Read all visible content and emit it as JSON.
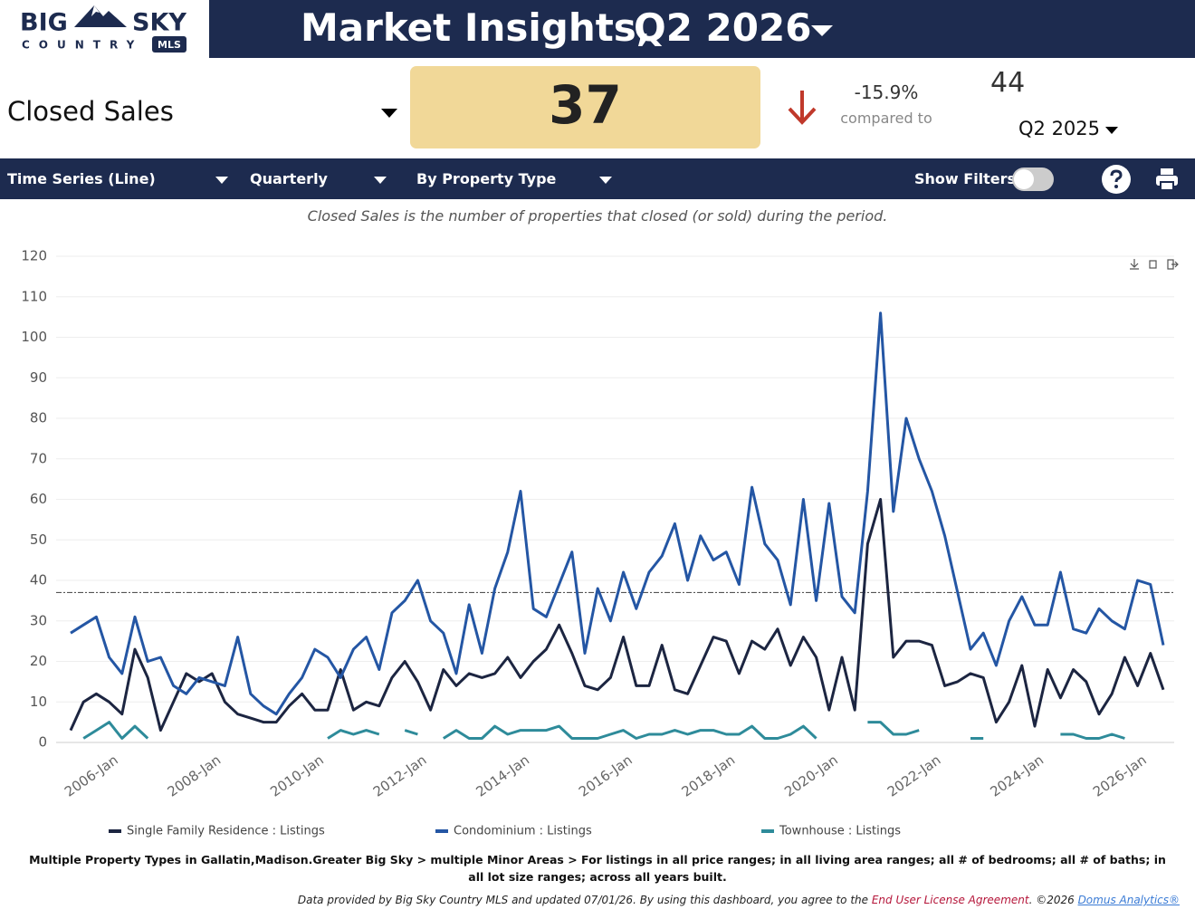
{
  "logo": {
    "big": "BIG",
    "sky": "SKY",
    "country": "COUNTRY",
    "badge": "MLS"
  },
  "header": {
    "title": "Market Insights,",
    "period": "Q2 2026"
  },
  "kpi": {
    "metric": "Closed Sales",
    "value": 37,
    "change": "-15.9%",
    "compared_to": "compared to",
    "prior_value": 44,
    "prior_period": "Q2 2025"
  },
  "toolbar": {
    "chart_type": "Time Series (Line)",
    "interval": "Quarterly",
    "grouping": "By Property Type",
    "show_filters": "Show Filters:"
  },
  "description": "Closed Sales is the number of properties that closed (or sold) during the period.",
  "chart_data": {
    "type": "line",
    "categories": [
      null,
      null,
      null,
      null,
      "2006-Jan",
      null,
      null,
      null,
      null,
      null,
      null,
      null,
      "2008-Jan",
      null,
      null,
      null,
      null,
      null,
      null,
      null,
      "2010-Jan",
      null,
      null,
      null,
      null,
      null,
      null,
      null,
      "2012-Jan",
      null,
      null,
      null,
      null,
      null,
      null,
      null,
      "2014-Jan",
      null,
      null,
      null,
      null,
      null,
      null,
      null,
      "2016-Jan",
      null,
      null,
      null,
      null,
      null,
      null,
      null,
      "2018-Jan",
      null,
      null,
      null,
      null,
      null,
      null,
      null,
      "2020-Jan",
      null,
      null,
      null,
      null,
      null,
      null,
      null,
      "2022-Jan",
      null,
      null,
      null,
      null,
      null,
      null,
      null,
      "2024-Jan",
      null,
      null,
      null,
      null,
      null,
      null,
      null,
      "2026-Jan",
      null
    ],
    "series": [
      {
        "name": "Single Family Residence : Listings",
        "color": "#1c2541",
        "values": [
          3,
          10,
          12,
          10,
          7,
          23,
          16,
          3,
          10,
          17,
          15,
          17,
          10,
          7,
          6,
          5,
          5,
          9,
          12,
          8,
          8,
          18,
          8,
          10,
          9,
          16,
          20,
          15,
          8,
          18,
          14,
          17,
          16,
          17,
          21,
          16,
          20,
          23,
          29,
          22,
          14,
          13,
          16,
          26,
          14,
          14,
          24,
          13,
          12,
          19,
          26,
          25,
          17,
          25,
          23,
          28,
          19,
          26,
          21,
          8,
          21,
          8,
          49,
          60,
          21,
          25,
          25,
          24,
          14,
          15,
          17,
          16,
          5,
          10,
          19,
          4,
          18,
          11,
          18,
          15,
          7,
          12,
          21,
          14,
          22,
          13
        ]
      },
      {
        "name": "Condominium : Listings",
        "color": "#2456a4",
        "values": [
          27,
          29,
          31,
          21,
          17,
          31,
          20,
          21,
          14,
          12,
          16,
          15,
          14,
          26,
          12,
          9,
          7,
          12,
          16,
          23,
          21,
          16,
          23,
          26,
          18,
          32,
          35,
          40,
          30,
          27,
          17,
          34,
          22,
          38,
          47,
          62,
          33,
          31,
          39,
          47,
          22,
          38,
          30,
          42,
          33,
          42,
          46,
          54,
          40,
          51,
          45,
          47,
          39,
          63,
          49,
          45,
          34,
          60,
          35,
          59,
          36,
          32,
          62,
          106,
          57,
          80,
          70,
          62,
          51,
          37,
          23,
          27,
          19,
          30,
          36,
          29,
          29,
          42,
          28,
          27,
          33,
          30,
          28,
          40,
          39,
          24
        ]
      },
      {
        "name": "Townhouse : Listings",
        "color": "#2e8b9a",
        "values": [
          null,
          1,
          3,
          5,
          1,
          4,
          1,
          null,
          null,
          null,
          null,
          null,
          null,
          null,
          null,
          null,
          null,
          null,
          null,
          null,
          1,
          3,
          2,
          3,
          2,
          null,
          3,
          2,
          null,
          1,
          3,
          1,
          1,
          4,
          2,
          3,
          3,
          3,
          4,
          1,
          1,
          1,
          2,
          3,
          1,
          2,
          2,
          3,
          2,
          3,
          3,
          2,
          2,
          4,
          1,
          1,
          2,
          4,
          1,
          null,
          null,
          null,
          5,
          5,
          2,
          2,
          3,
          null,
          null,
          null,
          1,
          1,
          null,
          null,
          null,
          null,
          null,
          2,
          2,
          1,
          1,
          2,
          1,
          null,
          null,
          null
        ]
      }
    ],
    "ylim": [
      0,
      120
    ],
    "yticks": [
      0,
      10,
      20,
      30,
      40,
      50,
      60,
      70,
      80,
      90,
      100,
      110,
      120
    ],
    "grid": true
  },
  "footer": {
    "criteria": "Multiple Property Types in Gallatin,Madison.Greater Big Sky > multiple Minor Areas > For listings in all price ranges; in all living area ranges; all # of bedrooms; all # of baths; in all lot size ranges; across all years built.",
    "provider": "Data provided by Big Sky Country MLS and updated 07/01/26.  By using this dashboard, you agree to the ",
    "eula": "End User License Agreement",
    "copyright": ".  ©2026 ",
    "vendor": "Domus Analytics®"
  }
}
